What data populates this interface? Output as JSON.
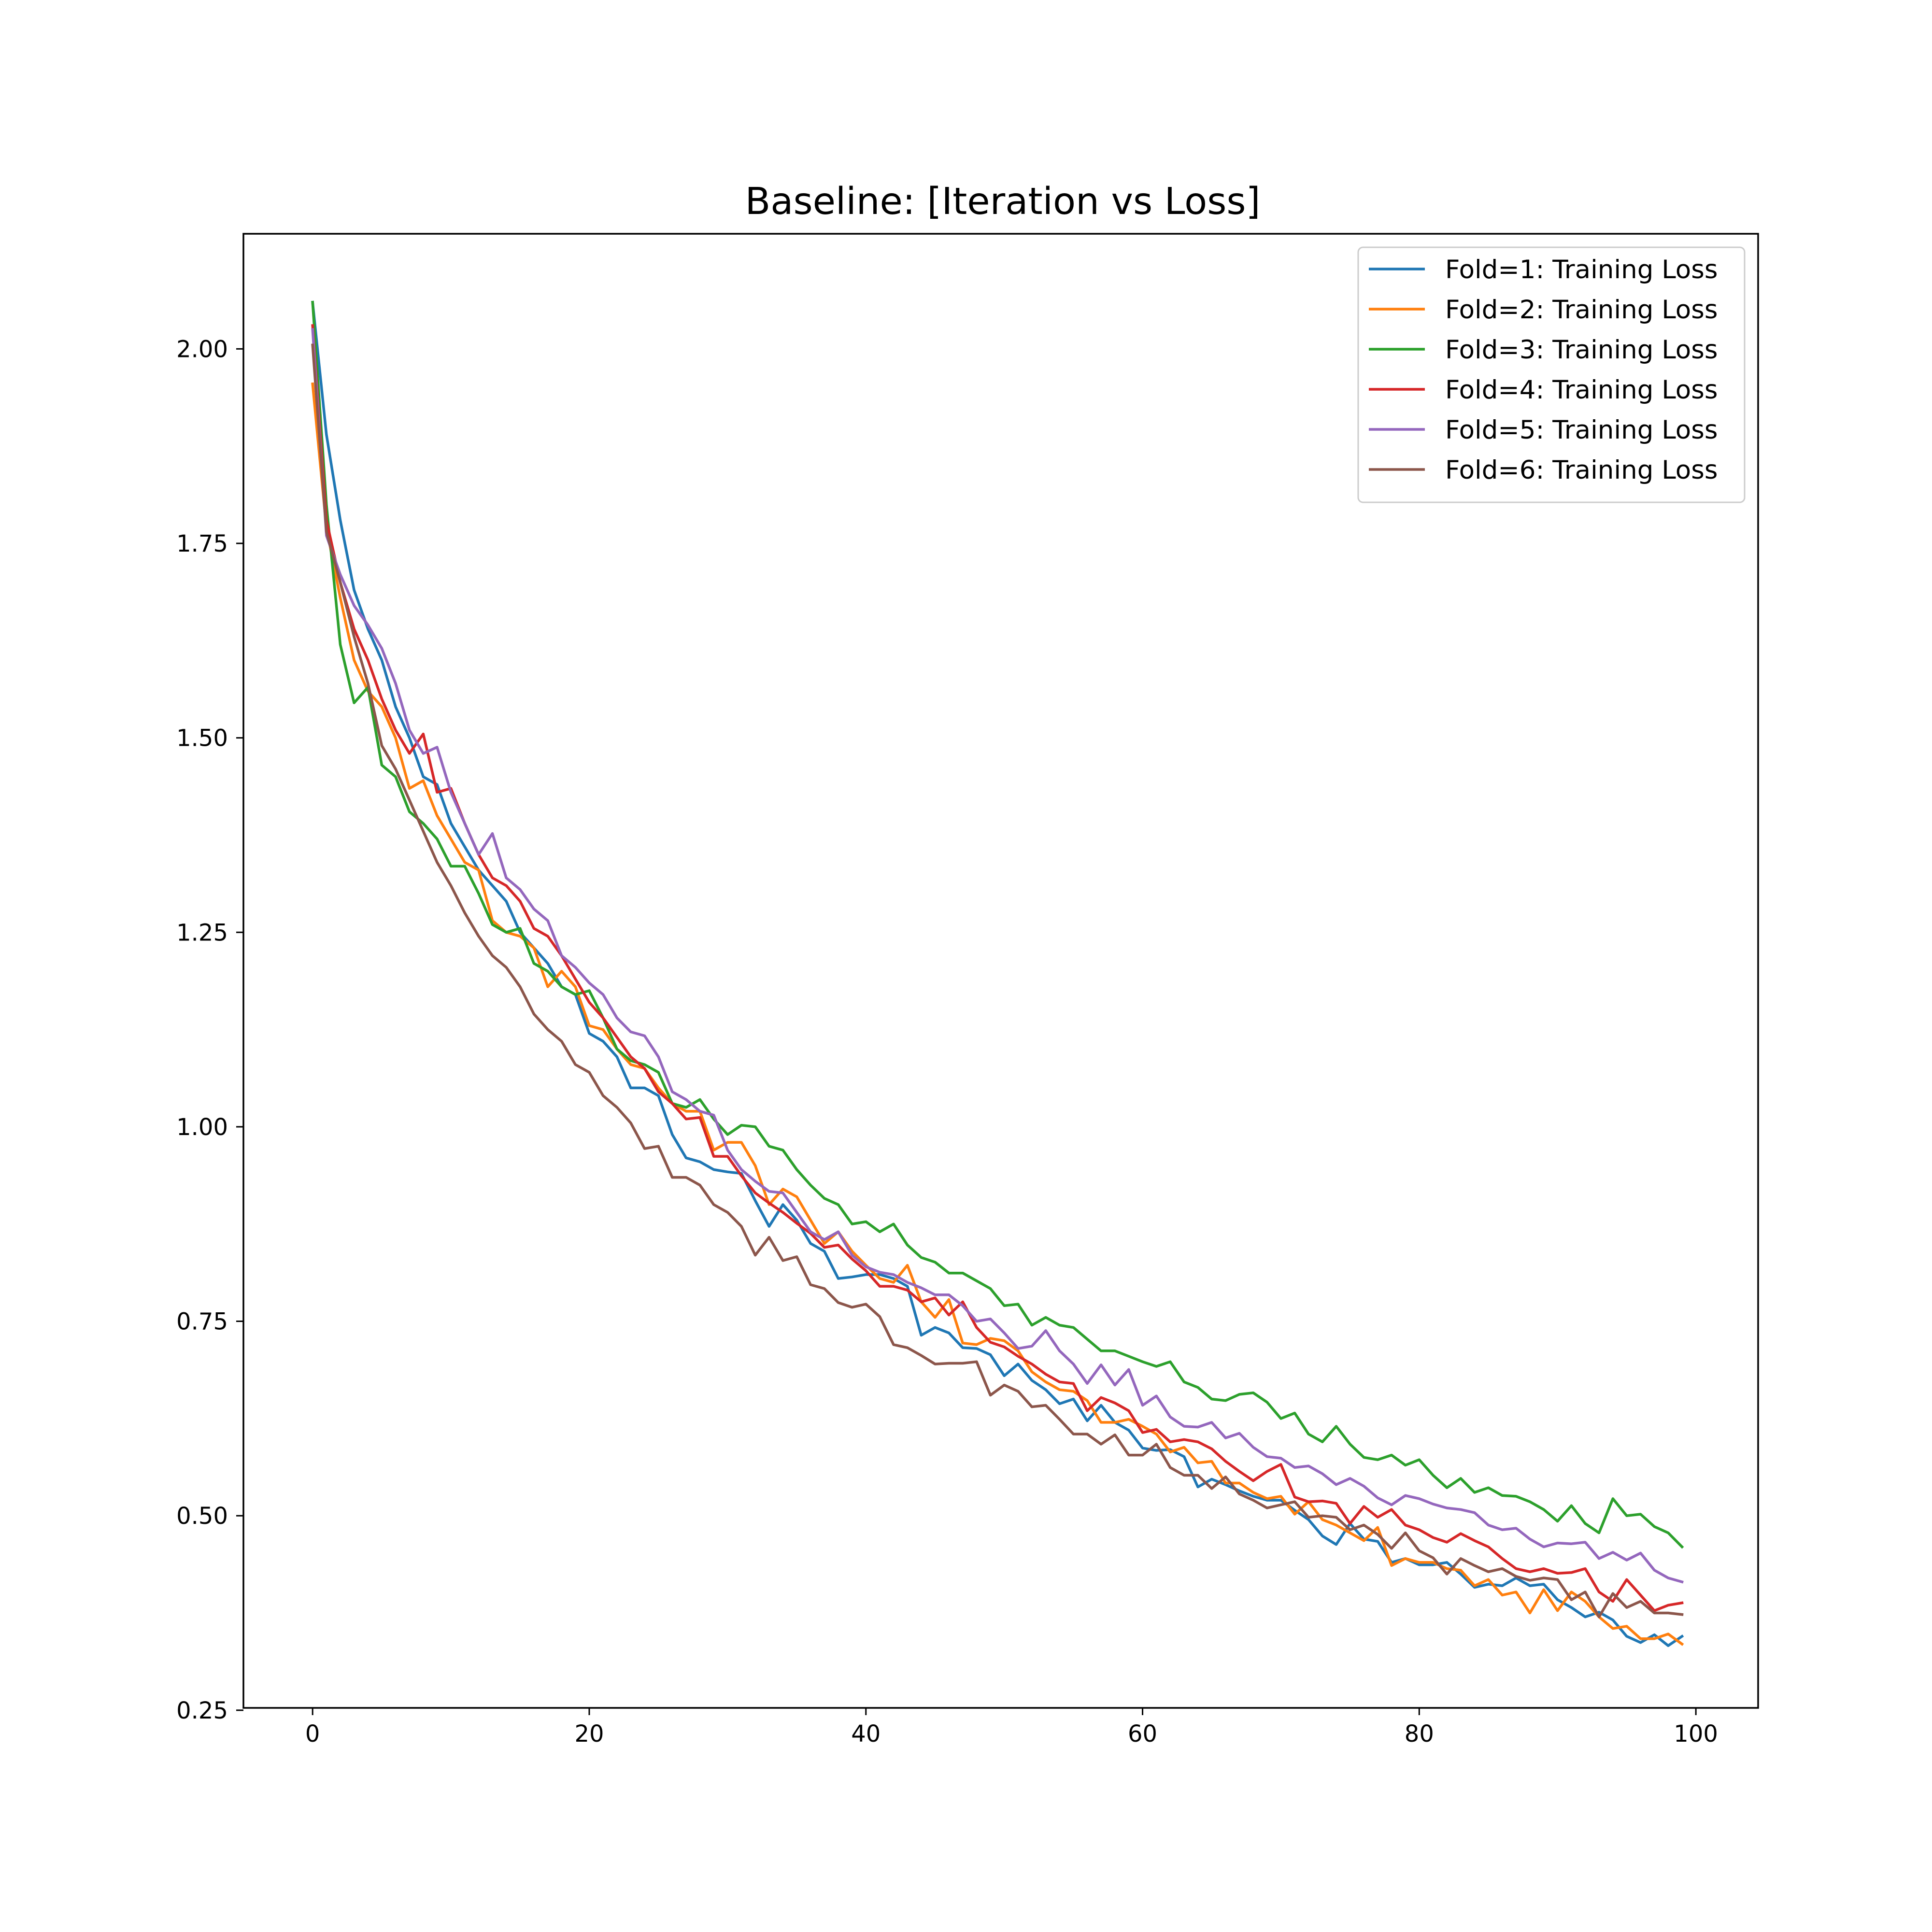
{
  "chart_data": {
    "type": "line",
    "title": "Baseline: [Iteration vs Loss]",
    "xlabel": "",
    "ylabel": "",
    "xlim": [
      -5,
      104.5
    ],
    "ylim": [
      0.253,
      2.148
    ],
    "x_ticks": [
      "0",
      "20",
      "40",
      "60",
      "80",
      "100"
    ],
    "x_tick_values": [
      0,
      20,
      40,
      60,
      80,
      100
    ],
    "y_ticks": [
      "0.25",
      "0.50",
      "0.75",
      "1.00",
      "1.25",
      "1.50",
      "1.75",
      "2.00"
    ],
    "y_tick_values": [
      0.25,
      0.5,
      0.75,
      1.0,
      1.25,
      1.5,
      1.75,
      2.0
    ],
    "grid": false,
    "legend_position": "top-right",
    "x": [
      0,
      1,
      2,
      3,
      4,
      5,
      6,
      7,
      8,
      9,
      10,
      11,
      12,
      13,
      14,
      15,
      16,
      17,
      18,
      19,
      20,
      21,
      22,
      23,
      24,
      25,
      26,
      27,
      28,
      29,
      30,
      31,
      32,
      33,
      34,
      35,
      36,
      37,
      38,
      39,
      40,
      41,
      42,
      43,
      44,
      45,
      46,
      47,
      48,
      49,
      50,
      51,
      52,
      53,
      54,
      55,
      56,
      57,
      58,
      59,
      60,
      61,
      62,
      63,
      64,
      65,
      66,
      67,
      68,
      69,
      70,
      71,
      72,
      73,
      74,
      75,
      76,
      77,
      78,
      79,
      80,
      81,
      82,
      83,
      84,
      85,
      86,
      87,
      88,
      89,
      90,
      91,
      92,
      93,
      94,
      95,
      96,
      97,
      98,
      99
    ],
    "series": [
      {
        "name": "Fold=1: Training Loss",
        "color": "#1f77b4",
        "values": [
          2.06,
          1.89,
          1.78,
          1.69,
          1.64,
          1.6,
          1.54,
          1.5,
          1.45,
          1.44,
          1.39,
          1.36,
          1.33,
          1.31,
          1.29,
          1.25,
          1.23,
          1.21,
          1.18,
          1.17,
          1.12,
          1.11,
          1.09,
          1.05,
          1.05,
          1.04,
          0.99,
          0.96,
          0.955,
          0.945,
          0.942,
          0.94,
          0.905,
          0.872,
          0.9,
          0.88,
          0.85,
          0.84,
          0.805,
          0.807,
          0.81,
          0.81,
          0.805,
          0.795,
          0.732,
          0.742,
          0.735,
          0.716,
          0.715,
          0.707,
          0.68,
          0.695,
          0.674,
          0.662,
          0.644,
          0.65,
          0.622,
          0.642,
          0.62,
          0.61,
          0.587,
          0.584,
          0.585,
          0.576,
          0.537,
          0.547,
          0.54,
          0.532,
          0.525,
          0.52,
          0.52,
          0.507,
          0.495,
          0.474,
          0.463,
          0.49,
          0.47,
          0.467,
          0.44,
          0.445,
          0.437,
          0.437,
          0.44,
          0.425,
          0.408,
          0.412,
          0.41,
          0.42,
          0.41,
          0.412,
          0.392,
          0.382,
          0.37,
          0.376,
          0.366,
          0.345,
          0.337,
          0.347,
          0.333,
          0.345
        ]
      },
      {
        "name": "Fold=2: Training Loss",
        "color": "#ff7f0e",
        "values": [
          1.955,
          1.77,
          1.68,
          1.6,
          1.56,
          1.54,
          1.5,
          1.435,
          1.445,
          1.4,
          1.37,
          1.34,
          1.33,
          1.265,
          1.25,
          1.245,
          1.23,
          1.18,
          1.2,
          1.18,
          1.13,
          1.125,
          1.1,
          1.08,
          1.075,
          1.05,
          1.03,
          1.02,
          1.02,
          0.97,
          0.98,
          0.98,
          0.95,
          0.9,
          0.92,
          0.91,
          0.88,
          0.85,
          0.865,
          0.84,
          0.822,
          0.805,
          0.8,
          0.822,
          0.775,
          0.755,
          0.778,
          0.722,
          0.72,
          0.728,
          0.725,
          0.712,
          0.685,
          0.672,
          0.662,
          0.66,
          0.648,
          0.62,
          0.62,
          0.624,
          0.615,
          0.605,
          0.582,
          0.588,
          0.568,
          0.57,
          0.542,
          0.542,
          0.53,
          0.522,
          0.525,
          0.502,
          0.518,
          0.495,
          0.488,
          0.478,
          0.468,
          0.485,
          0.436,
          0.445,
          0.44,
          0.44,
          0.432,
          0.43,
          0.41,
          0.418,
          0.398,
          0.402,
          0.375,
          0.405,
          0.378,
          0.402,
          0.39,
          0.37,
          0.355,
          0.358,
          0.342,
          0.342,
          0.348,
          0.335
        ]
      },
      {
        "name": "Fold=3: Training Loss",
        "color": "#2ca02c",
        "values": [
          2.06,
          1.8,
          1.62,
          1.545,
          1.565,
          1.465,
          1.45,
          1.405,
          1.39,
          1.37,
          1.335,
          1.335,
          1.3,
          1.26,
          1.25,
          1.255,
          1.21,
          1.2,
          1.18,
          1.17,
          1.175,
          1.14,
          1.1,
          1.085,
          1.08,
          1.07,
          1.03,
          1.025,
          1.035,
          1.01,
          0.99,
          1.002,
          1.0,
          0.975,
          0.97,
          0.945,
          0.925,
          0.908,
          0.9,
          0.875,
          0.878,
          0.865,
          0.875,
          0.848,
          0.832,
          0.826,
          0.812,
          0.812,
          0.802,
          0.792,
          0.77,
          0.772,
          0.745,
          0.755,
          0.745,
          0.742,
          0.727,
          0.712,
          0.712,
          0.705,
          0.698,
          0.692,
          0.698,
          0.672,
          0.665,
          0.65,
          0.648,
          0.656,
          0.658,
          0.646,
          0.625,
          0.632,
          0.605,
          0.595,
          0.615,
          0.592,
          0.575,
          0.572,
          0.578,
          0.565,
          0.572,
          0.552,
          0.536,
          0.548,
          0.53,
          0.536,
          0.526,
          0.525,
          0.518,
          0.508,
          0.493,
          0.513,
          0.49,
          0.478,
          0.522,
          0.5,
          0.502,
          0.486,
          0.478,
          0.46
        ]
      },
      {
        "name": "Fold=4: Training Loss",
        "color": "#d62728",
        "values": [
          2.03,
          1.78,
          1.7,
          1.64,
          1.6,
          1.55,
          1.51,
          1.48,
          1.505,
          1.43,
          1.435,
          1.39,
          1.35,
          1.32,
          1.31,
          1.29,
          1.255,
          1.245,
          1.22,
          1.19,
          1.16,
          1.14,
          1.115,
          1.09,
          1.075,
          1.045,
          1.03,
          1.01,
          1.012,
          0.962,
          0.962,
          0.937,
          0.915,
          0.902,
          0.89,
          0.876,
          0.863,
          0.845,
          0.848,
          0.83,
          0.815,
          0.795,
          0.795,
          0.79,
          0.775,
          0.78,
          0.758,
          0.775,
          0.742,
          0.723,
          0.717,
          0.705,
          0.695,
          0.682,
          0.672,
          0.67,
          0.635,
          0.652,
          0.645,
          0.635,
          0.607,
          0.611,
          0.595,
          0.598,
          0.595,
          0.586,
          0.57,
          0.557,
          0.545,
          0.557,
          0.566,
          0.524,
          0.518,
          0.519,
          0.516,
          0.49,
          0.512,
          0.498,
          0.508,
          0.488,
          0.482,
          0.472,
          0.466,
          0.477,
          0.468,
          0.46,
          0.445,
          0.432,
          0.428,
          0.432,
          0.426,
          0.427,
          0.432,
          0.402,
          0.39,
          0.418,
          0.398,
          0.378,
          0.385,
          0.388
        ]
      },
      {
        "name": "Fold=5: Training Loss",
        "color": "#9467bd",
        "values": [
          2.025,
          1.76,
          1.71,
          1.67,
          1.645,
          1.615,
          1.57,
          1.51,
          1.48,
          1.488,
          1.43,
          1.39,
          1.35,
          1.377,
          1.32,
          1.305,
          1.28,
          1.265,
          1.22,
          1.205,
          1.185,
          1.17,
          1.14,
          1.122,
          1.117,
          1.09,
          1.045,
          1.035,
          1.02,
          1.015,
          0.97,
          0.945,
          0.93,
          0.917,
          0.915,
          0.89,
          0.865,
          0.855,
          0.865,
          0.835,
          0.82,
          0.813,
          0.81,
          0.8,
          0.793,
          0.784,
          0.784,
          0.77,
          0.75,
          0.753,
          0.735,
          0.715,
          0.718,
          0.738,
          0.712,
          0.695,
          0.67,
          0.694,
          0.668,
          0.688,
          0.642,
          0.654,
          0.627,
          0.615,
          0.614,
          0.62,
          0.6,
          0.606,
          0.588,
          0.576,
          0.574,
          0.562,
          0.564,
          0.554,
          0.54,
          0.548,
          0.538,
          0.523,
          0.514,
          0.526,
          0.522,
          0.515,
          0.51,
          0.508,
          0.504,
          0.488,
          0.482,
          0.484,
          0.47,
          0.46,
          0.465,
          0.464,
          0.466,
          0.445,
          0.453,
          0.443,
          0.452,
          0.43,
          0.42,
          0.415
        ]
      },
      {
        "name": "Fold=6: Training Loss",
        "color": "#8c564b",
        "values": [
          2.005,
          1.765,
          1.7,
          1.63,
          1.57,
          1.49,
          1.46,
          1.42,
          1.38,
          1.34,
          1.31,
          1.275,
          1.245,
          1.22,
          1.205,
          1.18,
          1.145,
          1.125,
          1.11,
          1.08,
          1.07,
          1.04,
          1.025,
          1.005,
          0.972,
          0.975,
          0.935,
          0.935,
          0.925,
          0.9,
          0.89,
          0.872,
          0.835,
          0.858,
          0.828,
          0.833,
          0.797,
          0.792,
          0.774,
          0.768,
          0.772,
          0.756,
          0.72,
          0.716,
          0.706,
          0.695,
          0.696,
          0.696,
          0.698,
          0.655,
          0.668,
          0.66,
          0.64,
          0.642,
          0.624,
          0.605,
          0.605,
          0.592,
          0.604,
          0.578,
          0.578,
          0.592,
          0.562,
          0.552,
          0.552,
          0.535,
          0.55,
          0.528,
          0.52,
          0.51,
          0.514,
          0.518,
          0.498,
          0.5,
          0.498,
          0.482,
          0.488,
          0.476,
          0.458,
          0.478,
          0.455,
          0.446,
          0.425,
          0.445,
          0.436,
          0.428,
          0.432,
          0.422,
          0.417,
          0.42,
          0.418,
          0.392,
          0.402,
          0.37,
          0.4,
          0.382,
          0.39,
          0.375,
          0.375,
          0.373
        ]
      }
    ]
  }
}
